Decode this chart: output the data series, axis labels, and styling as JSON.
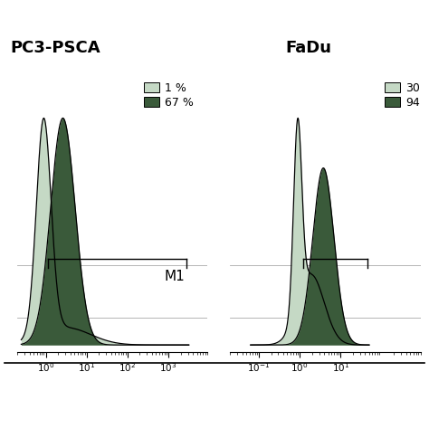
{
  "title_left": "PC3-PSCA",
  "title_right": "FaDu",
  "legend_left": [
    "1 %",
    "67 %"
  ],
  "legend_right": [
    "30",
    "94"
  ],
  "marker_label": "M1",
  "light_color": "#c5d9c5",
  "dark_color": "#3a5a3a",
  "background": "#ffffff",
  "light_color_outline": "#888888"
}
